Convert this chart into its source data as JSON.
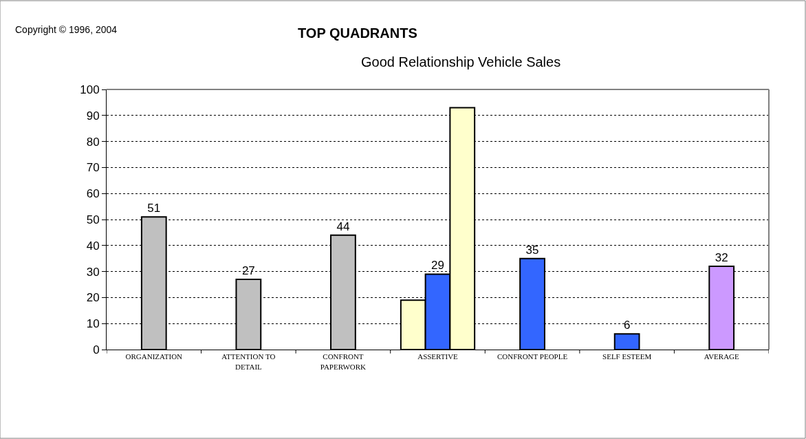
{
  "chart_data": {
    "type": "bar",
    "title": "TOP QUADRANTS",
    "subtitle": "Good Relationship Vehicle Sales",
    "annotations": [
      "Copyright © 1996, 2004"
    ],
    "categories": [
      "ORGANIZATION",
      "ATTENTION TO\nDETAIL",
      "CONFRONT\nPAPERWORK",
      "ASSERTIVE",
      "CONFRONT PEOPLE",
      "SELF ESTEEM",
      "AVERAGE"
    ],
    "series": [
      {
        "color": "#ffffcc",
        "values": [
          null,
          null,
          null,
          19,
          null,
          null,
          null
        ]
      },
      {
        "colors": [
          "#c0c0c0",
          "#c0c0c0",
          "#c0c0c0",
          "#3366ff",
          "#3366ff",
          "#3366ff",
          "#cc99ff"
        ],
        "values": [
          51,
          27,
          44,
          29,
          35,
          6,
          32
        ],
        "value_labels": [
          "51",
          "27",
          "44",
          "29",
          "35",
          "6",
          "32"
        ]
      },
      {
        "color": "#ffffcc",
        "values": [
          null,
          null,
          null,
          93,
          null,
          null,
          null
        ]
      }
    ],
    "ylim": [
      0,
      100
    ],
    "yticks": [
      0,
      10,
      20,
      30,
      40,
      50,
      60,
      70,
      80,
      90,
      100
    ],
    "grid": "y"
  }
}
